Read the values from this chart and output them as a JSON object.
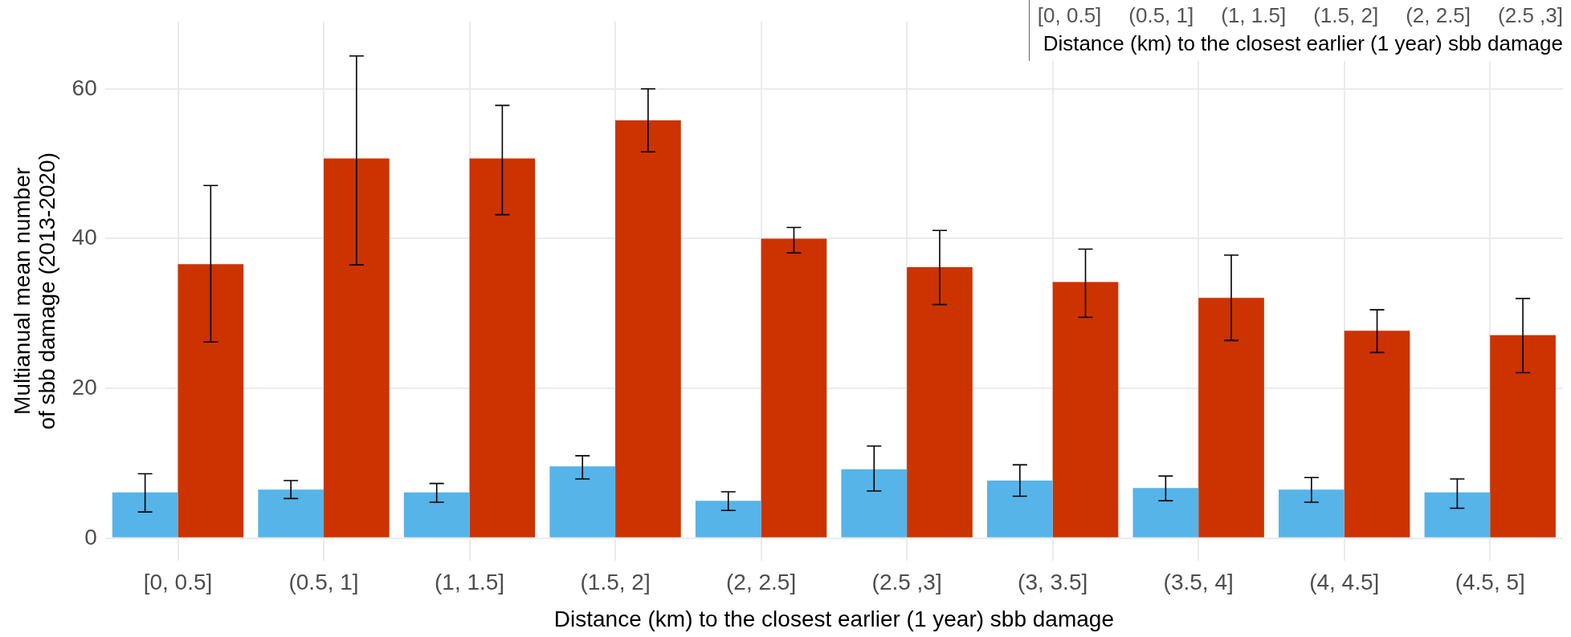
{
  "chart_data": {
    "type": "bar",
    "xlabel": "Distance (km) to the closest earlier (1 year) sbb damage",
    "ylabel": "Multianual mean number\nof sbb damage (2013-2020)",
    "categories": [
      "[0, 0.5]",
      "(0.5, 1]",
      "(1, 1.5]",
      "(1.5, 2]",
      "(2, 2.5]",
      "(2.5 ,3]",
      "(3, 3.5]",
      "(3.5, 4]",
      "(4, 4.5]",
      "(4.5, 5]"
    ],
    "series": [
      {
        "color": "#56b4e9",
        "values": [
          6.1,
          6.5,
          6.1,
          9.6,
          5.0,
          9.2,
          7.7,
          6.7,
          6.5,
          6.1
        ],
        "errors": [
          [
            3.5,
            8.6
          ],
          [
            5.3,
            7.7
          ],
          [
            4.8,
            7.3
          ],
          [
            7.9,
            11.0
          ],
          [
            3.7,
            6.2
          ],
          [
            6.3,
            12.3
          ],
          [
            5.6,
            9.8
          ],
          [
            5.0,
            8.3
          ],
          [
            4.8,
            8.1
          ],
          [
            4.0,
            7.9
          ]
        ]
      },
      {
        "color": "#cc3300",
        "values": [
          36.6,
          50.7,
          50.7,
          55.8,
          40.0,
          36.2,
          34.2,
          32.1,
          27.7,
          27.1
        ],
        "errors": [
          [
            26.2,
            47.1
          ],
          [
            36.5,
            64.4
          ],
          [
            43.2,
            57.8
          ],
          [
            51.6,
            60.0
          ],
          [
            38.1,
            41.5
          ],
          [
            31.2,
            41.1
          ],
          [
            29.5,
            38.6
          ],
          [
            26.4,
            37.8
          ],
          [
            24.8,
            30.5
          ],
          [
            22.1,
            32.0
          ]
        ]
      }
    ],
    "ylim": [
      -3,
      69
    ],
    "yticks": [
      0,
      20,
      40,
      60
    ],
    "grid": true,
    "legend": false,
    "annotations": [
      "[0, 0.5]",
      "(0.5, 1]",
      "(1, 1.5]",
      "(1.5, 2]",
      "(2, 2.5]",
      "(2.5 ,3]",
      "Distance (km) to the closest earlier (1 year) sbb damage"
    ]
  }
}
